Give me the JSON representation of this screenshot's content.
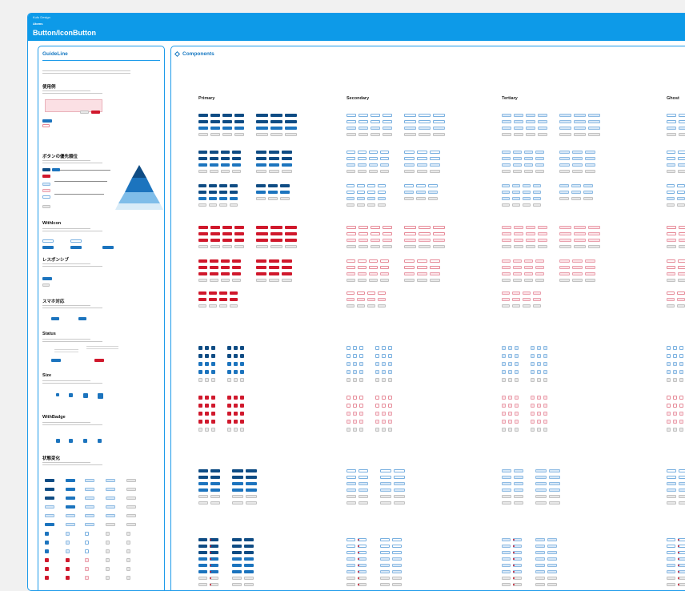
{
  "header": {
    "breadcrumb": "Kufu Design",
    "section": "Atoms",
    "title": "Button/IconButton"
  },
  "guideline": {
    "title": "GuideLine",
    "sections": [
      {
        "heading": "使用例"
      },
      {
        "heading": "ボタンの優先順位"
      },
      {
        "heading": "WithIcon"
      },
      {
        "heading": "レスポンシブ"
      },
      {
        "heading": "スマホ対応"
      },
      {
        "heading": "Status"
      },
      {
        "heading": "Size"
      },
      {
        "heading": "WithBadge"
      },
      {
        "heading": "状態変化"
      }
    ]
  },
  "components": {
    "title": "Components",
    "columns": [
      "Primary",
      "Secondary",
      "Tertiary",
      "Ghost"
    ]
  },
  "colors": {
    "accent": "#0d9ae8",
    "primary": "#1c74be",
    "primary_dark": "#0f4c84",
    "danger": "#d0182c",
    "secondary_bg": "#d8e8f7",
    "danger_light": "#fbe3e7"
  },
  "icons": [
    "diamond-icon",
    "pyramid-diagram"
  ]
}
